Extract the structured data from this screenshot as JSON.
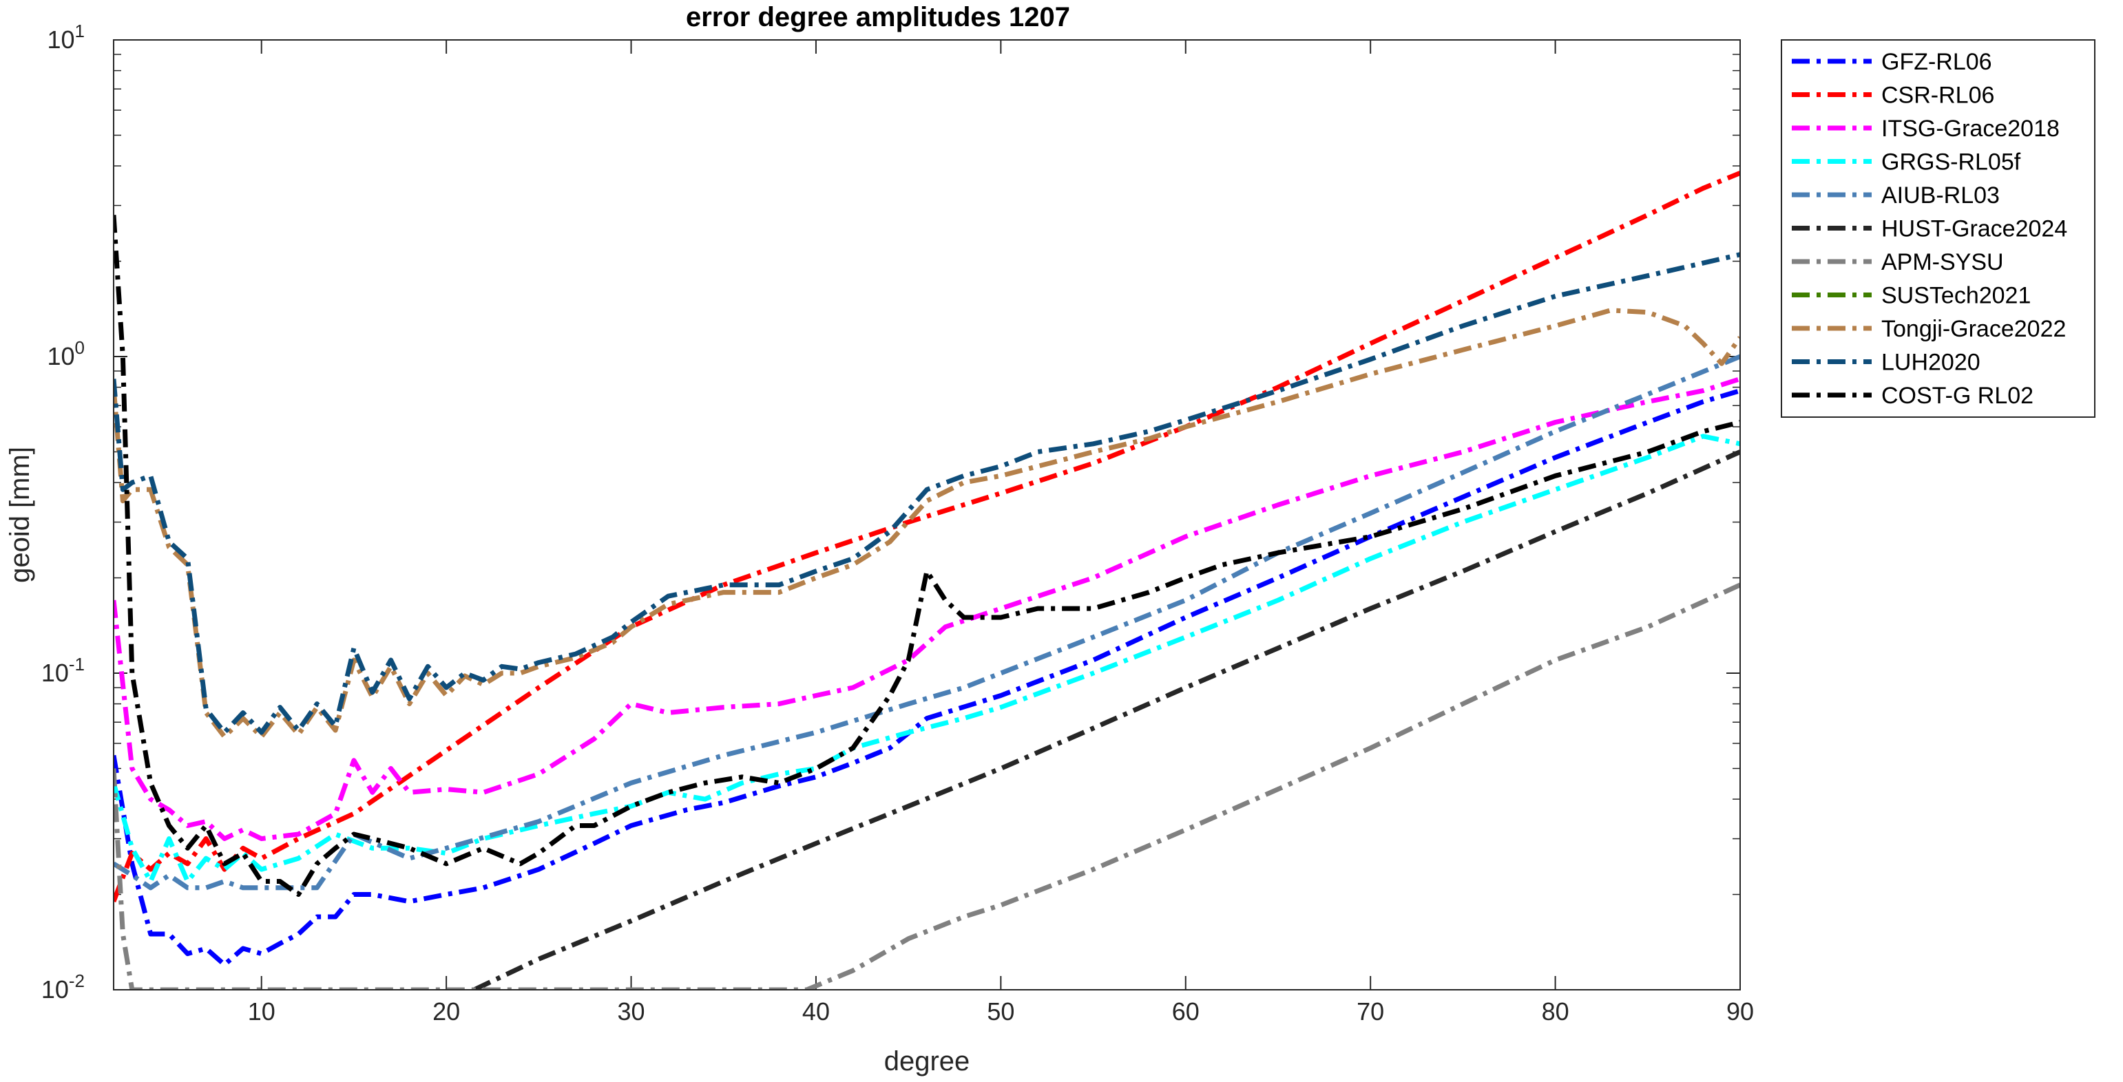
{
  "chart_data": {
    "type": "line",
    "title": "error degree amplitudes 1207",
    "xlabel": "degree",
    "ylabel": "geoid [mm]",
    "xlim": [
      2,
      90
    ],
    "ylim": [
      0.01,
      10
    ],
    "yscale": "log",
    "xticks": [
      10,
      20,
      30,
      40,
      50,
      60,
      70,
      80,
      90
    ],
    "yticks": [
      {
        "value": 0.01,
        "base": "10",
        "exp": "-2"
      },
      {
        "value": 0.1,
        "base": "10",
        "exp": "-1"
      },
      {
        "value": 1,
        "base": "10",
        "exp": "0"
      },
      {
        "value": 10,
        "base": "10",
        "exp": "1"
      }
    ],
    "grid": false,
    "box": true,
    "legend_position": "outside-right-top",
    "line_style": "dash-dot",
    "series": [
      {
        "name": "GFZ-RL06",
        "color": "#0000ff",
        "x": [
          2,
          3,
          4,
          5,
          6,
          7,
          8,
          9,
          10,
          11,
          12,
          13,
          14,
          15,
          16,
          18,
          20,
          22,
          25,
          28,
          30,
          33,
          35,
          38,
          40,
          42,
          44,
          46,
          50,
          55,
          60,
          65,
          70,
          75,
          80,
          85,
          88,
          90
        ],
        "y": [
          0.055,
          0.025,
          0.015,
          0.015,
          0.013,
          0.0135,
          0.012,
          0.0135,
          0.013,
          0.014,
          0.015,
          0.017,
          0.017,
          0.02,
          0.02,
          0.019,
          0.02,
          0.021,
          0.024,
          0.029,
          0.033,
          0.037,
          0.039,
          0.044,
          0.047,
          0.052,
          0.058,
          0.072,
          0.085,
          0.11,
          0.15,
          0.2,
          0.27,
          0.36,
          0.48,
          0.62,
          0.72,
          0.78
        ]
      },
      {
        "name": "CSR-RL06",
        "color": "#ff0000",
        "x": [
          2,
          3,
          4,
          5,
          6,
          7,
          8,
          9,
          10,
          12,
          15,
          20,
          25,
          30,
          35,
          40,
          45,
          50,
          55,
          60,
          65,
          70,
          75,
          80,
          85,
          88,
          90
        ],
        "y": [
          0.019,
          0.027,
          0.024,
          0.027,
          0.025,
          0.03,
          0.024,
          0.028,
          0.026,
          0.03,
          0.036,
          0.057,
          0.09,
          0.14,
          0.19,
          0.24,
          0.3,
          0.37,
          0.46,
          0.6,
          0.8,
          1.1,
          1.5,
          2.05,
          2.8,
          3.4,
          3.8
        ]
      },
      {
        "name": "ITSG-Grace2018",
        "color": "#ff00ff",
        "x": [
          2,
          3,
          4,
          5,
          6,
          7,
          8,
          9,
          10,
          12,
          14,
          15,
          16,
          17,
          18,
          20,
          22,
          25,
          28,
          30,
          32,
          35,
          38,
          40,
          42,
          45,
          47,
          50,
          55,
          60,
          65,
          70,
          75,
          80,
          85,
          88,
          90
        ],
        "y": [
          0.17,
          0.05,
          0.04,
          0.037,
          0.033,
          0.034,
          0.03,
          0.032,
          0.03,
          0.031,
          0.036,
          0.053,
          0.042,
          0.05,
          0.042,
          0.043,
          0.042,
          0.048,
          0.062,
          0.08,
          0.075,
          0.078,
          0.08,
          0.085,
          0.09,
          0.11,
          0.14,
          0.16,
          0.2,
          0.27,
          0.34,
          0.42,
          0.5,
          0.62,
          0.72,
          0.78,
          0.85
        ]
      },
      {
        "name": "GRGS-RL05f",
        "color": "#00ffff",
        "x": [
          2,
          3,
          4,
          5,
          6,
          7,
          8,
          9,
          10,
          12,
          14,
          16,
          18,
          20,
          22,
          25,
          28,
          30,
          32,
          34,
          36,
          38,
          40,
          42,
          45,
          48,
          50,
          55,
          60,
          65,
          70,
          75,
          80,
          85,
          88,
          90
        ],
        "y": [
          0.045,
          0.028,
          0.022,
          0.03,
          0.022,
          0.026,
          0.024,
          0.027,
          0.024,
          0.026,
          0.031,
          0.028,
          0.028,
          0.027,
          0.03,
          0.033,
          0.036,
          0.038,
          0.042,
          0.04,
          0.045,
          0.048,
          0.05,
          0.058,
          0.065,
          0.072,
          0.078,
          0.1,
          0.13,
          0.17,
          0.23,
          0.3,
          0.38,
          0.48,
          0.56,
          0.53
        ]
      },
      {
        "name": "AIUB-RL03",
        "color": "#4a7fb5",
        "x": [
          2,
          3,
          4,
          5,
          6,
          7,
          8,
          9,
          10,
          12,
          13,
          15,
          18,
          20,
          25,
          30,
          35,
          40,
          45,
          48,
          50,
          55,
          60,
          65,
          70,
          75,
          80,
          85,
          90
        ],
        "y": [
          0.025,
          0.023,
          0.021,
          0.023,
          0.021,
          0.021,
          0.022,
          0.021,
          0.021,
          0.021,
          0.021,
          0.031,
          0.026,
          0.028,
          0.034,
          0.045,
          0.055,
          0.065,
          0.08,
          0.09,
          0.1,
          0.13,
          0.17,
          0.24,
          0.32,
          0.43,
          0.58,
          0.76,
          1.0
        ]
      },
      {
        "name": "HUST-Grace2024",
        "color": "#262626",
        "x": [
          21.5,
          25,
          30,
          35,
          40,
          45,
          50,
          55,
          60,
          65,
          70,
          75,
          80,
          85,
          90
        ],
        "y": [
          0.01,
          0.0125,
          0.0165,
          0.022,
          0.029,
          0.038,
          0.05,
          0.067,
          0.09,
          0.12,
          0.16,
          0.21,
          0.28,
          0.37,
          0.5
        ]
      },
      {
        "name": "APM-SYSU",
        "color": "#808080",
        "x": [
          2,
          2.5,
          3,
          39.5,
          42,
          45,
          48,
          50,
          55,
          60,
          65,
          70,
          75,
          80,
          85,
          90
        ],
        "y": [
          0.05,
          0.015,
          0.01,
          0.01,
          0.0115,
          0.0145,
          0.017,
          0.0185,
          0.024,
          0.032,
          0.043,
          0.058,
          0.08,
          0.11,
          0.14,
          0.19
        ]
      },
      {
        "name": "SUSTech2021",
        "color": "#3f7f00",
        "x": [],
        "y": []
      },
      {
        "name": "Tongji-Grace2022",
        "color": "#b5804a",
        "x": [
          2,
          2.5,
          3,
          4,
          5,
          6,
          7,
          8,
          9,
          10,
          11,
          12,
          13,
          14,
          15,
          16,
          17,
          18,
          19,
          20,
          21,
          22,
          23,
          24,
          25,
          27,
          29,
          30,
          32,
          35,
          38,
          40,
          42,
          44,
          46,
          48,
          50,
          52,
          55,
          58,
          60,
          65,
          70,
          75,
          80,
          83,
          85,
          87,
          88,
          89,
          90
        ],
        "y": [
          0.8,
          0.35,
          0.38,
          0.38,
          0.25,
          0.22,
          0.075,
          0.063,
          0.072,
          0.063,
          0.075,
          0.064,
          0.078,
          0.066,
          0.11,
          0.084,
          0.105,
          0.08,
          0.1,
          0.085,
          0.098,
          0.092,
          0.1,
          0.1,
          0.105,
          0.112,
          0.125,
          0.14,
          0.165,
          0.18,
          0.18,
          0.2,
          0.22,
          0.26,
          0.35,
          0.4,
          0.42,
          0.45,
          0.5,
          0.55,
          0.6,
          0.72,
          0.88,
          1.05,
          1.25,
          1.4,
          1.38,
          1.25,
          1.1,
          0.95,
          1.15
        ]
      },
      {
        "name": "LUH2020",
        "color": "#0e4d7a",
        "x": [
          2,
          2.5,
          3,
          4,
          5,
          6,
          7,
          8,
          9,
          10,
          11,
          12,
          13,
          14,
          15,
          16,
          17,
          18,
          19,
          20,
          21,
          22,
          23,
          24,
          25,
          27,
          29,
          30,
          32,
          35,
          38,
          40,
          42,
          44,
          46,
          48,
          50,
          52,
          55,
          58,
          60,
          65,
          70,
          75,
          80,
          85,
          90
        ],
        "y": [
          0.85,
          0.38,
          0.4,
          0.42,
          0.26,
          0.23,
          0.077,
          0.065,
          0.075,
          0.065,
          0.078,
          0.066,
          0.08,
          0.068,
          0.12,
          0.087,
          0.11,
          0.083,
          0.105,
          0.09,
          0.1,
          0.095,
          0.105,
          0.103,
          0.108,
          0.115,
          0.13,
          0.145,
          0.175,
          0.19,
          0.19,
          0.21,
          0.23,
          0.28,
          0.38,
          0.42,
          0.45,
          0.5,
          0.53,
          0.58,
          0.63,
          0.78,
          0.98,
          1.25,
          1.55,
          1.8,
          2.1
        ]
      },
      {
        "name": "COST-G RL02",
        "color": "#000000",
        "x": [
          2,
          2.5,
          3,
          4,
          5,
          6,
          7,
          8,
          9,
          10,
          11,
          12,
          13,
          14,
          15,
          16,
          18,
          20,
          22,
          24,
          25,
          27,
          28,
          30,
          32,
          34,
          36,
          38,
          40,
          42,
          44,
          45,
          46,
          47,
          48,
          50,
          52,
          55,
          58,
          60,
          62,
          65,
          70,
          75,
          80,
          85,
          88,
          90
        ],
        "y": [
          2.8,
          1.0,
          0.1,
          0.045,
          0.033,
          0.028,
          0.033,
          0.025,
          0.027,
          0.022,
          0.022,
          0.02,
          0.025,
          0.028,
          0.031,
          0.03,
          0.028,
          0.025,
          0.028,
          0.025,
          0.027,
          0.033,
          0.033,
          0.038,
          0.042,
          0.045,
          0.047,
          0.045,
          0.05,
          0.058,
          0.085,
          0.11,
          0.21,
          0.17,
          0.15,
          0.15,
          0.16,
          0.16,
          0.18,
          0.2,
          0.22,
          0.24,
          0.27,
          0.33,
          0.42,
          0.5,
          0.58,
          0.62
        ]
      }
    ]
  }
}
